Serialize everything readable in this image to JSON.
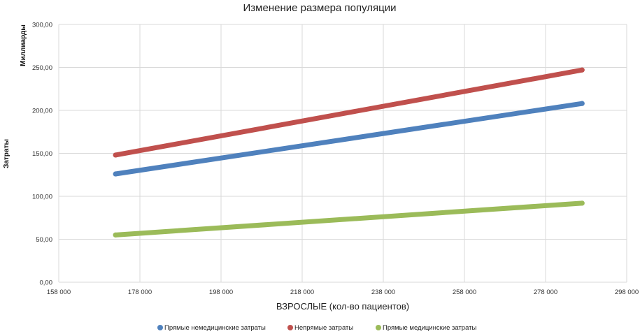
{
  "chart_data": {
    "type": "line",
    "title": "Изменение размера популяции",
    "xlabel": "ВЗРОСЛЫЕ (кол-во пациентов)",
    "ylabel": "Затраты",
    "yunit_label": "Миллиарды",
    "xlim": [
      158000,
      298000
    ],
    "ylim": [
      0,
      300
    ],
    "x_ticks": [
      158000,
      178000,
      198000,
      218000,
      238000,
      258000,
      278000,
      298000
    ],
    "x_tick_labels": [
      "158 000",
      "178 000",
      "198 000",
      "218 000",
      "238 000",
      "258 000",
      "278 000",
      "298 000"
    ],
    "y_ticks": [
      0,
      50,
      100,
      150,
      200,
      250,
      300
    ],
    "y_tick_labels": [
      "0,00",
      "50,00",
      "100,00",
      "150,00",
      "200,00",
      "250,00",
      "300,00"
    ],
    "grid": true,
    "legend_position": "bottom",
    "series": [
      {
        "name": "Прямые немедицинские затраты",
        "color": "#4f81bd",
        "x": [
          172000,
          287000
        ],
        "y": [
          126,
          208
        ]
      },
      {
        "name": "Непрямые затраты",
        "color": "#c0504d",
        "x": [
          172000,
          287000
        ],
        "y": [
          148,
          247
        ]
      },
      {
        "name": "Прямые медицинские затраты",
        "color": "#9bbb59",
        "x": [
          172000,
          287000
        ],
        "y": [
          55,
          92
        ]
      }
    ]
  }
}
